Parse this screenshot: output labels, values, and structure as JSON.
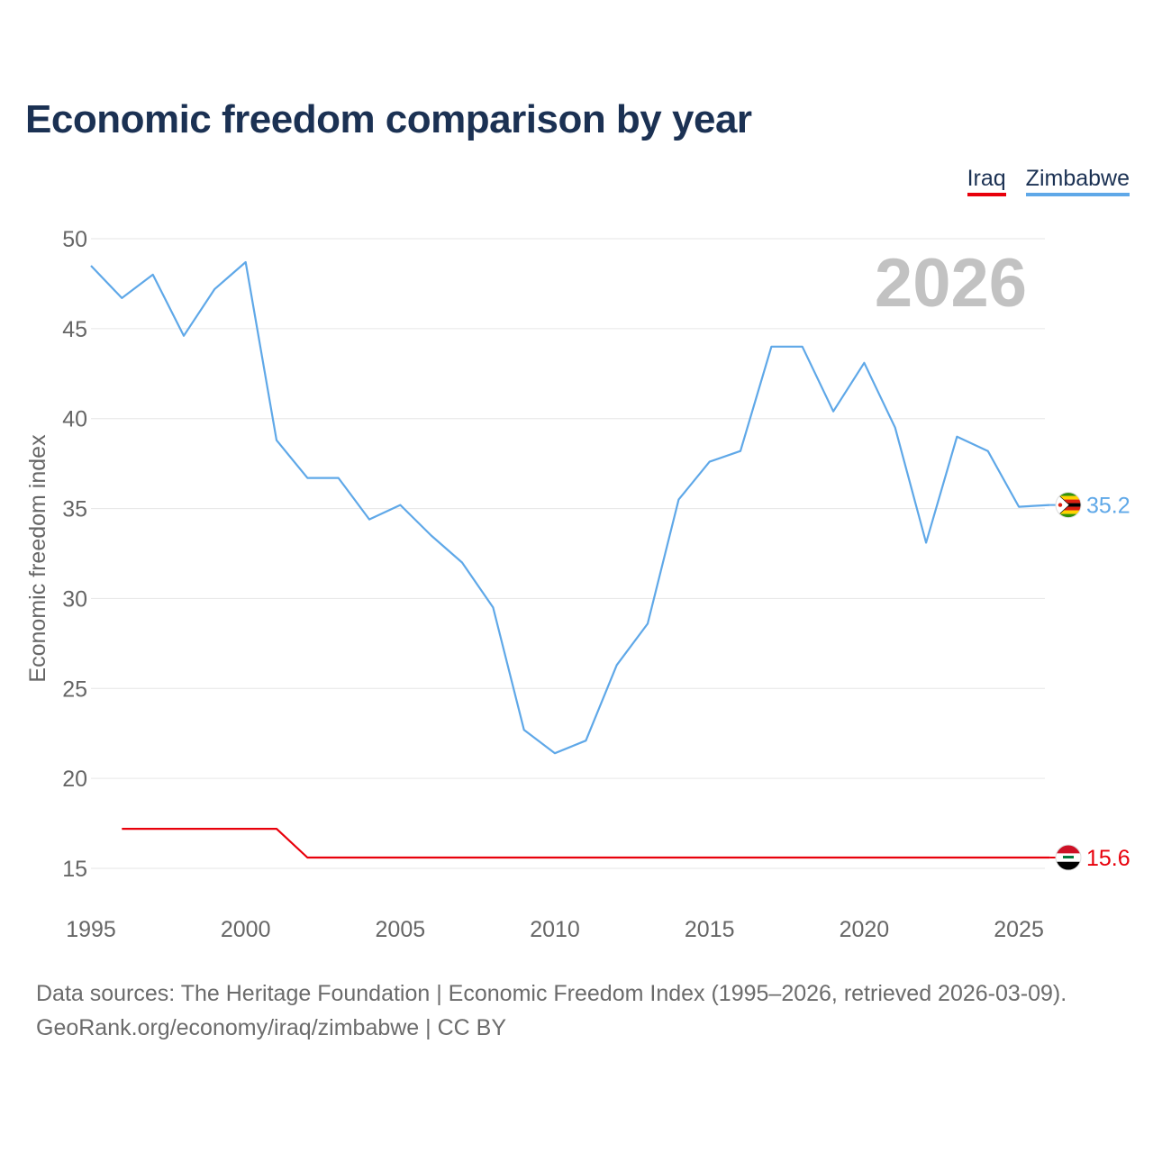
{
  "title": "Economic freedom comparison by year",
  "legend": [
    {
      "label": "Iraq",
      "color": "#e8000b"
    },
    {
      "label": "Zimbabwe",
      "color": "#5fa8e8"
    }
  ],
  "year_badge": "2026",
  "source_line1": "Data sources: The Heritage Foundation | Economic Freedom Index (1995–2026, retrieved 2026-03-09).",
  "source_line2": "GeoRank.org/economy/iraq/zimbabwe | CC BY",
  "chart_data": {
    "type": "line",
    "title": "Economic freedom comparison by year",
    "xlabel": "",
    "ylabel": "Economic freedom index",
    "xlim": [
      1995,
      2026
    ],
    "ylim": [
      13,
      50
    ],
    "y_ticks": [
      15,
      20,
      25,
      30,
      35,
      40,
      45,
      50
    ],
    "x_ticks": [
      1995,
      2000,
      2005,
      2010,
      2015,
      2020,
      2025
    ],
    "grid": true,
    "legend_position": "top-right",
    "series": [
      {
        "name": "Zimbabwe",
        "color": "#5fa8e8",
        "end_label": "35.2",
        "flag": "zimbabwe-flag",
        "x": [
          1995,
          1996,
          1997,
          1998,
          1999,
          2000,
          2001,
          2002,
          2003,
          2004,
          2005,
          2006,
          2007,
          2008,
          2009,
          2010,
          2011,
          2012,
          2013,
          2014,
          2015,
          2016,
          2017,
          2018,
          2019,
          2020,
          2021,
          2022,
          2023,
          2024,
          2025,
          2026
        ],
        "values": [
          48.5,
          46.7,
          48.0,
          44.6,
          47.2,
          48.7,
          38.8,
          36.7,
          36.7,
          34.4,
          35.2,
          33.5,
          32.0,
          29.5,
          22.7,
          21.4,
          22.1,
          26.3,
          28.6,
          35.5,
          37.6,
          38.2,
          44.0,
          44.0,
          40.4,
          43.1,
          39.5,
          33.1,
          39.0,
          38.2,
          35.1,
          35.2
        ]
      },
      {
        "name": "Iraq",
        "color": "#e8000b",
        "end_label": "15.6",
        "flag": "iraq-flag",
        "x": [
          1996,
          1997,
          1998,
          1999,
          2000,
          2001,
          2002,
          2003,
          2004,
          2005,
          2006,
          2007,
          2008,
          2009,
          2010,
          2011,
          2012,
          2013,
          2014,
          2015,
          2016,
          2017,
          2018,
          2019,
          2020,
          2021,
          2022,
          2023,
          2024,
          2025,
          2026
        ],
        "values": [
          17.2,
          17.2,
          17.2,
          17.2,
          17.2,
          17.2,
          15.6,
          15.6,
          15.6,
          15.6,
          15.6,
          15.6,
          15.6,
          15.6,
          15.6,
          15.6,
          15.6,
          15.6,
          15.6,
          15.6,
          15.6,
          15.6,
          15.6,
          15.6,
          15.6,
          15.6,
          15.6,
          15.6,
          15.6,
          15.6,
          15.6
        ]
      }
    ]
  }
}
